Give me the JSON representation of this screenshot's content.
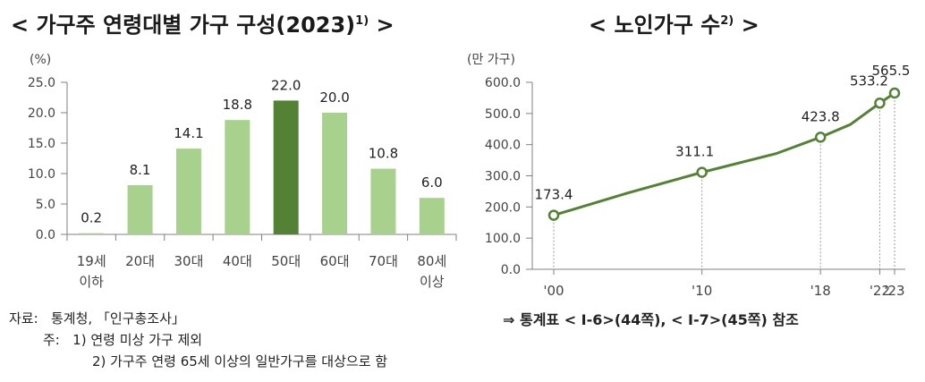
{
  "title_left": {
    "main": "< 가구주 연령대별 가구 구성(2023)",
    "sup": "1)",
    "tail": " >"
  },
  "title_right": {
    "main": "< 노인가구 수",
    "sup": "2)",
    "tail": " >"
  },
  "chart_data": [
    {
      "type": "bar",
      "unit_label": "(%)",
      "categories": [
        [
          "19세",
          "이하"
        ],
        [
          "20대"
        ],
        [
          "30대"
        ],
        [
          "40대"
        ],
        [
          "50대"
        ],
        [
          "60대"
        ],
        [
          "70대"
        ],
        [
          "80세",
          "이상"
        ]
      ],
      "values": [
        0.2,
        8.1,
        14.1,
        18.8,
        22.0,
        20.0,
        10.8,
        6.0
      ],
      "value_labels": [
        "0.2",
        "8.1",
        "14.1",
        "18.8",
        "22.0",
        "20.0",
        "10.8",
        "6.0"
      ],
      "highlight_index": 4,
      "yticks": [
        "0.0",
        "5.0",
        "10.0",
        "15.0",
        "20.0",
        "25.0"
      ],
      "ylim": [
        0,
        25
      ],
      "colors": {
        "bar": "#a8d18d",
        "highlight": "#548235",
        "axis": "#808080"
      }
    },
    {
      "type": "line",
      "unit_label": "(만 가구)",
      "x": [
        2000,
        2005,
        2010,
        2015,
        2018,
        2020,
        2022,
        2023
      ],
      "values": [
        173.4,
        245,
        311.1,
        371.1,
        423.8,
        464.2,
        533.2,
        565.5
      ],
      "labeled_points": [
        {
          "x": 2000,
          "label": "173.4"
        },
        {
          "x": 2010,
          "label": "311.1"
        },
        {
          "x": 2018,
          "label": "423.8"
        },
        {
          "x": 2022,
          "label": "533.2"
        },
        {
          "x": 2023,
          "label": "565.5"
        }
      ],
      "xticks": [
        {
          "x": 2000,
          "label": "'00"
        },
        {
          "x": 2010,
          "label": "'10"
        },
        {
          "x": 2018,
          "label": "'18"
        },
        {
          "x": 2022,
          "label": "'22"
        },
        {
          "x": 2023,
          "label": "'23"
        }
      ],
      "yticks": [
        "0.0",
        "100.0",
        "200.0",
        "300.0",
        "400.0",
        "500.0",
        "600.0"
      ],
      "ylim": [
        0,
        600
      ],
      "colors": {
        "line": "#548235",
        "marker_fill": "#ffffff",
        "axis": "#808080"
      }
    }
  ],
  "notes": {
    "source_label": "자료:",
    "source_text": "통계청, 「인구총조사」",
    "note_label": "주:",
    "note_1": "1) 연령 미상 가구 제외",
    "note_2": "2) 가구주 연령 65세 이상의 일반가구를 대상으로 함"
  },
  "reference": "⇒ 통계표 < Ⅰ-6>(44쪽), < Ⅰ-7>(45쪽) 참조"
}
